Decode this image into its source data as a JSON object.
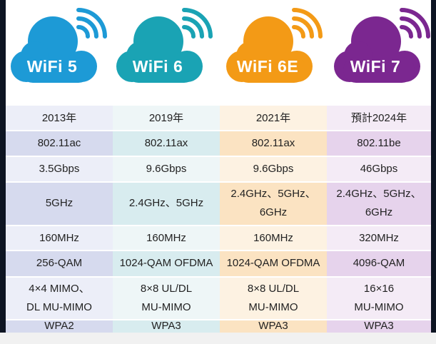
{
  "standards": [
    {
      "name": "WiFi 5",
      "color": "#1d9ad6",
      "tint_light": "#eceef8",
      "tint_dark": "#d6daee",
      "values": [
        "2013年",
        "802.11ac",
        "3.5Gbps",
        "5GHz",
        "160MHz",
        "256-QAM",
        "4×4 MIMO、\nDL MU-MIMO",
        "WPA2"
      ]
    },
    {
      "name": "WiFi 6",
      "color": "#1aa3b4",
      "tint_light": "#eef6f7",
      "tint_dark": "#d8ecef",
      "values": [
        "2019年",
        "802.11ax",
        "9.6Gbps",
        "2.4GHz、5GHz",
        "160MHz",
        "1024-QAM OFDMA",
        "8×8 UL/DL\nMU-MIMO",
        "WPA3"
      ]
    },
    {
      "name": "WiFi 6E",
      "color": "#f39a16",
      "tint_light": "#fdf2e2",
      "tint_dark": "#fbe3c2",
      "values": [
        "2021年",
        "802.11ax",
        "9.6Gbps",
        "2.4GHz、5GHz、\n6GHz",
        "160MHz",
        "1024-QAM OFDMA",
        "8×8 UL/DL\nMU-MIMO",
        "WPA3"
      ]
    },
    {
      "name": "WiFi 7",
      "color": "#7b2790",
      "tint_light": "#f4ebf6",
      "tint_dark": "#e6d3ec",
      "values": [
        "預計2024年",
        "802.11be",
        "46Gbps",
        "2.4GHz、5GHz、\n6GHz",
        "320MHz",
        "4096-QAM",
        "16×16\nMU-MIMO",
        "WPA3"
      ]
    }
  ]
}
